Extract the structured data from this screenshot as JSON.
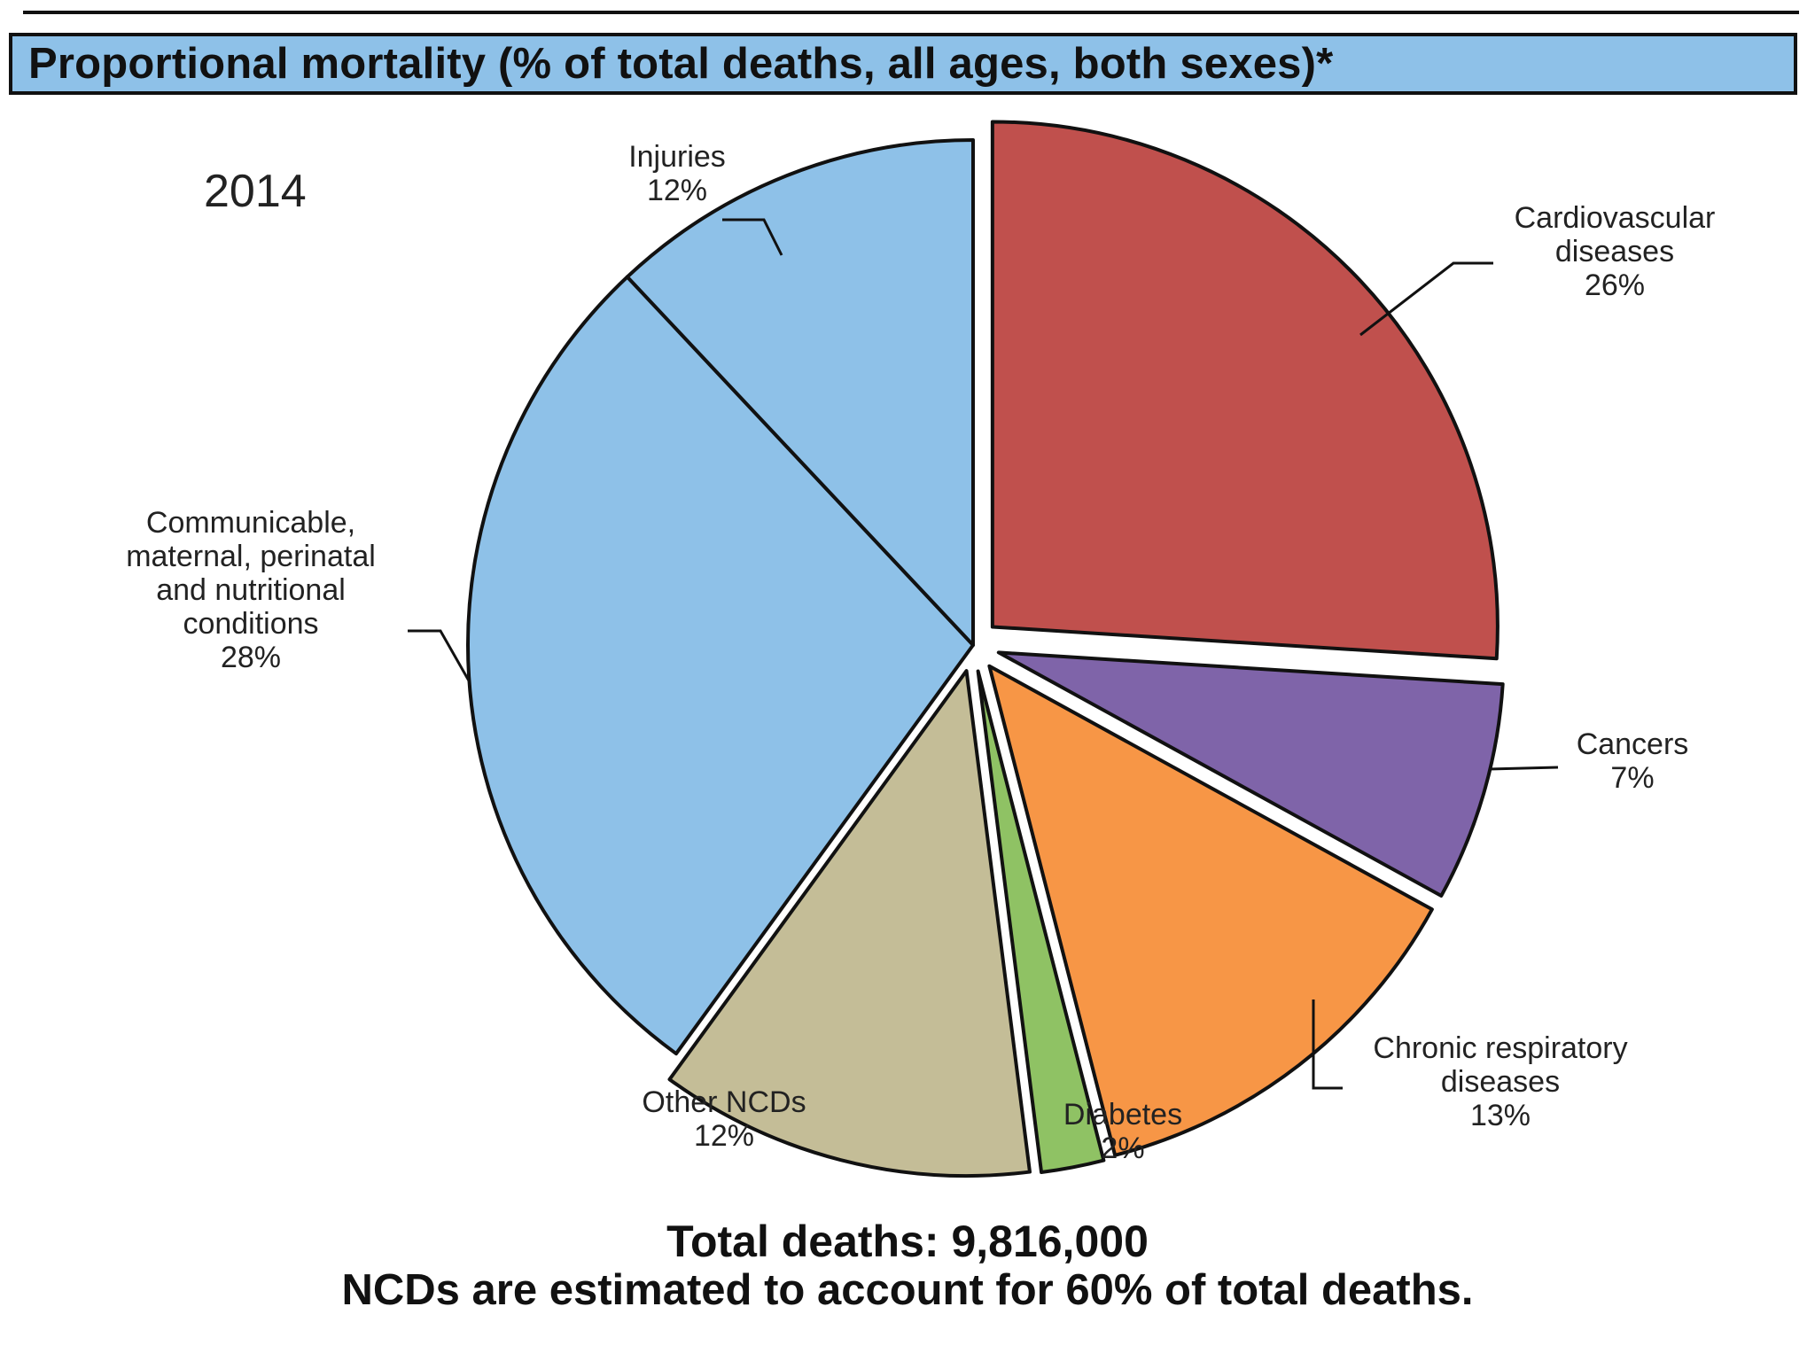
{
  "chart_data": {
    "type": "pie",
    "title": "Proportional mortality (% of total deaths, all ages, both sexes)*",
    "year": "2014",
    "slices": [
      {
        "name": "cardiovascular",
        "lines": [
          "Cardiovascular",
          "diseases",
          "26%"
        ],
        "value": 26,
        "color": "#c0504d",
        "exploded": true
      },
      {
        "name": "cancers",
        "lines": [
          "Cancers",
          "7%"
        ],
        "value": 7,
        "color": "#7f64a9",
        "exploded": true
      },
      {
        "name": "chronic-respiratory",
        "lines": [
          "Chronic respiratory",
          "diseases",
          "13%"
        ],
        "value": 13,
        "color": "#f79646",
        "exploded": true
      },
      {
        "name": "diabetes",
        "lines": [
          "Diabetes",
          "2%"
        ],
        "value": 2,
        "color": "#8fc264",
        "exploded": true
      },
      {
        "name": "other-ncds",
        "lines": [
          "Other NCDs",
          "12%"
        ],
        "value": 12,
        "color": "#c4bd97",
        "exploded": true
      },
      {
        "name": "communicable",
        "lines": [
          "Communicable,",
          "maternal, perinatal",
          "and nutritional",
          "conditions",
          "28%"
        ],
        "value": 28,
        "color": "#8ec1e8",
        "exploded": false
      },
      {
        "name": "injuries",
        "lines": [
          "Injuries",
          "12%"
        ],
        "value": 12,
        "color": "#8ec1e8",
        "exploded": false
      }
    ],
    "footer": {
      "total": "Total deaths: 9,816,000",
      "note": "NCDs are estimated to account for 60% of total deaths."
    }
  }
}
